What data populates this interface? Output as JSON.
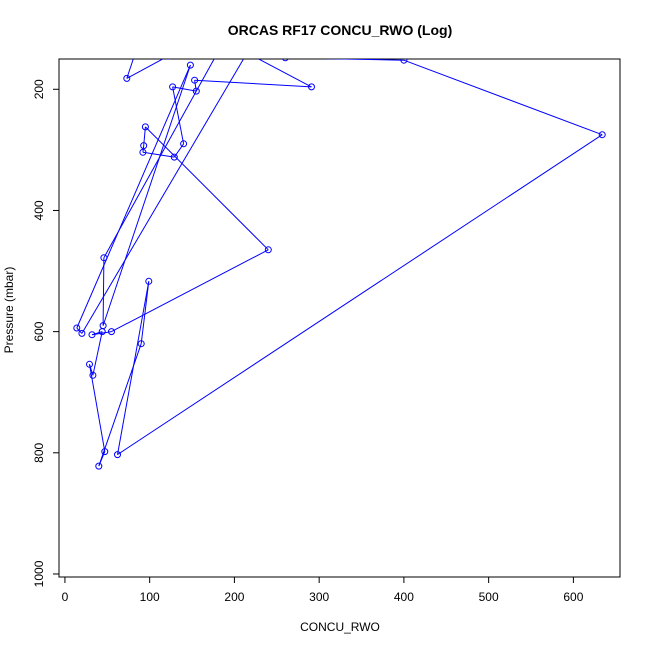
{
  "chart_data": {
    "type": "scatter",
    "title": "ORCAS RF17 CONCU_RWO (Log)",
    "xlabel": "CONCU_RWO",
    "ylabel": "Pressure (mbar)",
    "xlim": [
      -7,
      655
    ],
    "ylim": [
      1005,
      150
    ],
    "y_reversed": true,
    "x_ticks": [
      0,
      100,
      200,
      300,
      400,
      500,
      600
    ],
    "y_ticks": [
      200,
      400,
      600,
      800,
      1000
    ],
    "grid": false,
    "legend": "none",
    "marker": "open-circle",
    "connect_points": true,
    "color": "#0000ff",
    "series": [
      {
        "x": [
          83,
          73,
          122,
          185,
          260,
          400,
          634,
          62,
          99,
          90,
          40,
          47,
          29,
          33,
          44,
          32,
          55,
          240,
          95,
          93,
          92,
          129,
          140,
          127,
          155,
          153,
          291,
          215,
          20,
          14,
          148,
          45,
          46,
          180
        ],
        "y": [
          140,
          182,
          145,
          140,
          148,
          152,
          275,
          803,
          517,
          620,
          822,
          798,
          654,
          672,
          600,
          605,
          600,
          465,
          262,
          293,
          304,
          312,
          290,
          196,
          203,
          185,
          196,
          140,
          603,
          594,
          160,
          590,
          478,
          140
        ]
      }
    ]
  }
}
